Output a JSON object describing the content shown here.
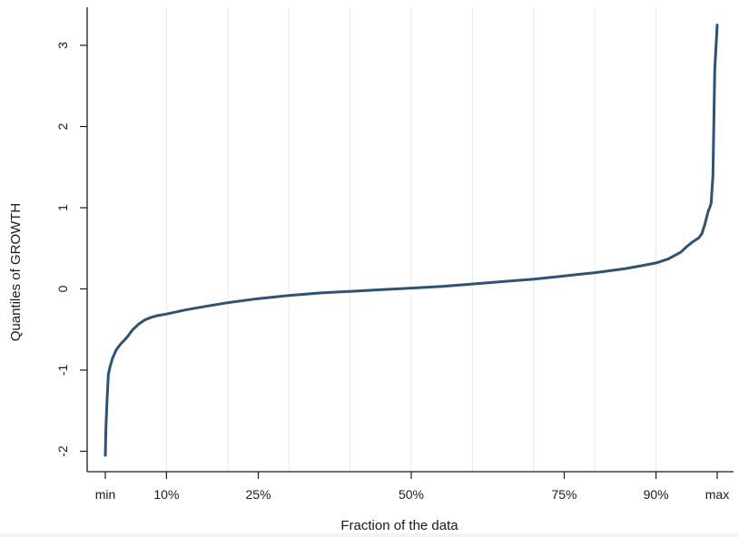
{
  "chart_data": {
    "type": "line",
    "title": "",
    "xlabel": "Fraction of the data",
    "ylabel": "Quantiles of GROWTH",
    "xlim": [
      0,
      1
    ],
    "ylim": [
      -2.2,
      3.4
    ],
    "x_ticks": [
      {
        "value": 0,
        "label": "min"
      },
      {
        "value": 0.1,
        "label": "10%"
      },
      {
        "value": 0.25,
        "label": "25%"
      },
      {
        "value": 0.5,
        "label": "50%"
      },
      {
        "value": 0.75,
        "label": "75%"
      },
      {
        "value": 0.9,
        "label": "90%"
      },
      {
        "value": 1,
        "label": "max"
      }
    ],
    "y_ticks": [
      {
        "value": -2,
        "label": "-2"
      },
      {
        "value": -1,
        "label": "-1"
      },
      {
        "value": 0,
        "label": "0"
      },
      {
        "value": 1,
        "label": "1"
      },
      {
        "value": 2,
        "label": "2"
      },
      {
        "value": 3,
        "label": "3"
      }
    ],
    "grid": "vertical",
    "gridlines_x": [
      0.1,
      0.2,
      0.3,
      0.4,
      0.5,
      0.6,
      0.7,
      0.8,
      0.9
    ],
    "line_color": "#2f5277",
    "grid_color": "#ececec",
    "series": [
      {
        "x": [
          0,
          0.001,
          0.003,
          0.005,
          0.008,
          0.012,
          0.018,
          0.025,
          0.035,
          0.045,
          0.055,
          0.065,
          0.075,
          0.085,
          0.1,
          0.13,
          0.16,
          0.2,
          0.25,
          0.3,
          0.35,
          0.4,
          0.45,
          0.5,
          0.55,
          0.6,
          0.65,
          0.7,
          0.75,
          0.8,
          0.85,
          0.88,
          0.9,
          0.92,
          0.94,
          0.95,
          0.96,
          0.97,
          0.975,
          0.98,
          0.985,
          0.99,
          0.993,
          0.996,
          1.0
        ],
        "y": [
          -2.05,
          -1.7,
          -1.35,
          -1.05,
          -0.95,
          -0.85,
          -0.75,
          -0.68,
          -0.6,
          -0.5,
          -0.43,
          -0.38,
          -0.35,
          -0.33,
          -0.31,
          -0.26,
          -0.22,
          -0.17,
          -0.12,
          -0.08,
          -0.05,
          -0.03,
          -0.01,
          0.01,
          0.03,
          0.06,
          0.09,
          0.12,
          0.16,
          0.2,
          0.25,
          0.29,
          0.32,
          0.37,
          0.45,
          0.52,
          0.58,
          0.63,
          0.68,
          0.8,
          0.95,
          1.05,
          1.4,
          2.7,
          3.25
        ]
      }
    ]
  }
}
